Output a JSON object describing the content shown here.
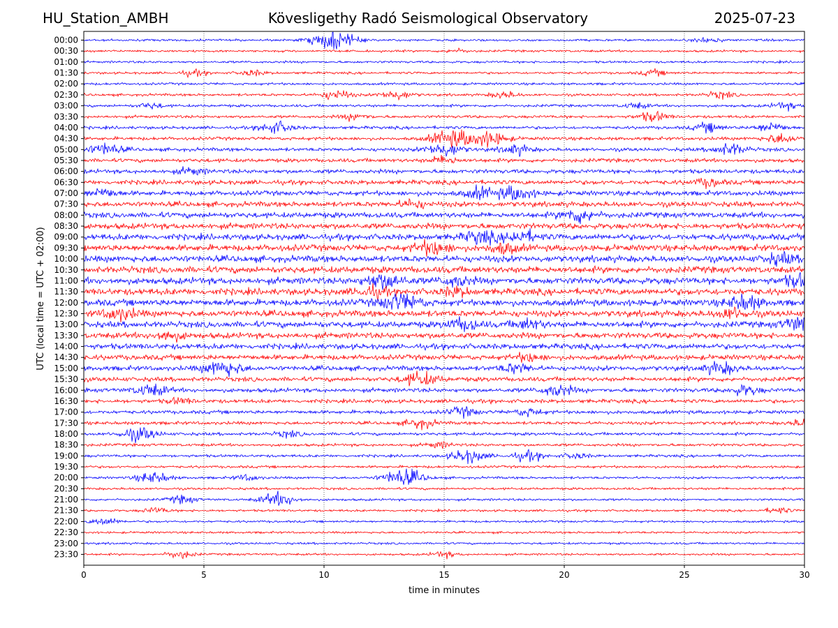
{
  "header": {
    "station": "HU_Station_AMBH",
    "observatory": "Kövesligethy Radó Seismological Observatory",
    "date": "2025-07-23"
  },
  "chart_data": {
    "type": "line",
    "title": "Kövesligethy Radó Seismological Observatory",
    "xlabel": "time in minutes",
    "ylabel": "UTC (local time = UTC + 02:00)",
    "xlim": [
      0,
      30
    ],
    "xticks": [
      0,
      5,
      10,
      15,
      20,
      25,
      30
    ],
    "grid": "vertical dotted at x ticks",
    "colors": {
      "even_rows": "#0000ff",
      "odd_rows": "#ff0000"
    },
    "rows": [
      {
        "label": "00:00",
        "color": "#0000ff",
        "events": [
          {
            "t": 10.4,
            "amp": 1.0
          },
          {
            "t": 26.0,
            "amp": 0.3
          }
        ]
      },
      {
        "label": "00:30",
        "color": "#ff0000",
        "events": [
          {
            "t": 15.5,
            "amp": 0.2
          }
        ]
      },
      {
        "label": "01:00",
        "color": "#0000ff",
        "events": []
      },
      {
        "label": "01:30",
        "color": "#ff0000",
        "events": [
          {
            "t": 4.6,
            "amp": 0.3
          },
          {
            "t": 7.0,
            "amp": 0.3
          },
          {
            "t": 23.7,
            "amp": 0.3
          }
        ]
      },
      {
        "label": "02:00",
        "color": "#0000ff",
        "events": []
      },
      {
        "label": "02:30",
        "color": "#ff0000",
        "events": [
          {
            "t": 10.5,
            "amp": 0.5
          },
          {
            "t": 13.0,
            "amp": 0.5
          },
          {
            "t": 17.5,
            "amp": 0.35
          },
          {
            "t": 26.5,
            "amp": 0.35
          }
        ]
      },
      {
        "label": "03:00",
        "color": "#0000ff",
        "events": [
          {
            "t": 2.8,
            "amp": 0.3
          },
          {
            "t": 23.0,
            "amp": 0.3
          },
          {
            "t": 29.2,
            "amp": 0.35
          }
        ]
      },
      {
        "label": "03:30",
        "color": "#ff0000",
        "events": [
          {
            "t": 11.3,
            "amp": 0.35
          },
          {
            "t": 23.7,
            "amp": 0.5
          }
        ]
      },
      {
        "label": "04:00",
        "color": "#0000ff",
        "events": [
          {
            "t": 8.0,
            "amp": 0.6
          },
          {
            "t": 26.0,
            "amp": 0.45
          },
          {
            "t": 28.6,
            "amp": 0.5
          }
        ]
      },
      {
        "label": "04:30",
        "color": "#ff0000",
        "events": [
          {
            "t": 15.3,
            "amp": 0.9
          },
          {
            "t": 16.8,
            "amp": 0.8
          },
          {
            "t": 29.0,
            "amp": 0.5
          }
        ]
      },
      {
        "label": "05:00",
        "color": "#0000ff",
        "events": [
          {
            "t": 0.9,
            "amp": 0.6
          },
          {
            "t": 15.0,
            "amp": 0.7
          },
          {
            "t": 18.0,
            "amp": 0.5
          },
          {
            "t": 26.9,
            "amp": 0.6
          }
        ]
      },
      {
        "label": "05:30",
        "color": "#ff0000",
        "events": [
          {
            "t": 15.0,
            "amp": 0.4
          }
        ]
      },
      {
        "label": "06:00",
        "color": "#0000ff",
        "events": [
          {
            "t": 4.5,
            "amp": 0.35
          }
        ]
      },
      {
        "label": "06:30",
        "color": "#ff0000",
        "events": [
          {
            "t": 26.0,
            "amp": 0.4
          }
        ]
      },
      {
        "label": "07:00",
        "color": "#0000ff",
        "events": [
          {
            "t": 0.8,
            "amp": 0.45
          },
          {
            "t": 16.5,
            "amp": 0.55
          },
          {
            "t": 18.0,
            "amp": 0.7
          }
        ]
      },
      {
        "label": "07:30",
        "color": "#ff0000",
        "events": [
          {
            "t": 13.7,
            "amp": 0.4
          }
        ]
      },
      {
        "label": "08:00",
        "color": "#0000ff",
        "events": [
          {
            "t": 20.6,
            "amp": 0.7
          }
        ]
      },
      {
        "label": "08:30",
        "color": "#ff0000",
        "events": []
      },
      {
        "label": "09:00",
        "color": "#0000ff",
        "events": [
          {
            "t": 16.5,
            "amp": 0.6
          },
          {
            "t": 18.2,
            "amp": 0.6
          }
        ]
      },
      {
        "label": "09:30",
        "color": "#ff0000",
        "events": [
          {
            "t": 14.5,
            "amp": 0.7
          },
          {
            "t": 17.5,
            "amp": 0.5
          }
        ]
      },
      {
        "label": "10:00",
        "color": "#0000ff",
        "events": [
          {
            "t": 29.0,
            "amp": 0.5
          }
        ]
      },
      {
        "label": "10:30",
        "color": "#ff0000",
        "events": []
      },
      {
        "label": "11:00",
        "color": "#0000ff",
        "events": [
          {
            "t": 12.5,
            "amp": 0.8
          },
          {
            "t": 15.5,
            "amp": 0.5
          },
          {
            "t": 29.8,
            "amp": 0.6
          }
        ]
      },
      {
        "label": "11:30",
        "color": "#ff0000",
        "events": [
          {
            "t": 12.0,
            "amp": 0.5
          },
          {
            "t": 15.5,
            "amp": 0.4
          }
        ]
      },
      {
        "label": "12:00",
        "color": "#0000ff",
        "events": [
          {
            "t": 13.2,
            "amp": 0.9
          },
          {
            "t": 27.5,
            "amp": 0.7
          }
        ]
      },
      {
        "label": "12:30",
        "color": "#ff0000",
        "events": [
          {
            "t": 1.5,
            "amp": 0.6
          },
          {
            "t": 27.0,
            "amp": 0.5
          }
        ]
      },
      {
        "label": "13:00",
        "color": "#0000ff",
        "events": [
          {
            "t": 15.8,
            "amp": 0.6
          },
          {
            "t": 18.5,
            "amp": 0.5
          },
          {
            "t": 29.8,
            "amp": 0.7
          }
        ]
      },
      {
        "label": "13:30",
        "color": "#ff0000",
        "events": [
          {
            "t": 3.5,
            "amp": 0.5
          }
        ]
      },
      {
        "label": "14:00",
        "color": "#0000ff",
        "events": []
      },
      {
        "label": "14:30",
        "color": "#ff0000",
        "events": [
          {
            "t": 18.5,
            "amp": 0.4
          }
        ]
      },
      {
        "label": "15:00",
        "color": "#0000ff",
        "events": [
          {
            "t": 5.8,
            "amp": 0.8
          },
          {
            "t": 18.0,
            "amp": 0.5
          },
          {
            "t": 26.5,
            "amp": 0.6
          }
        ]
      },
      {
        "label": "15:30",
        "color": "#ff0000",
        "events": [
          {
            "t": 14.0,
            "amp": 0.7
          }
        ]
      },
      {
        "label": "16:00",
        "color": "#0000ff",
        "events": [
          {
            "t": 2.8,
            "amp": 0.6
          },
          {
            "t": 19.7,
            "amp": 0.6
          },
          {
            "t": 27.5,
            "amp": 0.5
          }
        ]
      },
      {
        "label": "16:30",
        "color": "#ff0000",
        "events": [
          {
            "t": 4.0,
            "amp": 0.3
          }
        ]
      },
      {
        "label": "17:00",
        "color": "#0000ff",
        "events": [
          {
            "t": 15.8,
            "amp": 0.45
          },
          {
            "t": 18.5,
            "amp": 0.4
          }
        ]
      },
      {
        "label": "17:30",
        "color": "#ff0000",
        "events": [
          {
            "t": 14.0,
            "amp": 0.5
          },
          {
            "t": 30.0,
            "amp": 0.4
          }
        ]
      },
      {
        "label": "18:00",
        "color": "#0000ff",
        "events": [
          {
            "t": 2.3,
            "amp": 0.7
          },
          {
            "t": 8.5,
            "amp": 0.3
          }
        ]
      },
      {
        "label": "18:30",
        "color": "#ff0000",
        "events": [
          {
            "t": 14.8,
            "amp": 0.3
          }
        ]
      },
      {
        "label": "19:00",
        "color": "#0000ff",
        "events": [
          {
            "t": 16.0,
            "amp": 0.7
          },
          {
            "t": 18.5,
            "amp": 0.5
          },
          {
            "t": 20.5,
            "amp": 0.3
          }
        ]
      },
      {
        "label": "19:30",
        "color": "#ff0000",
        "events": []
      },
      {
        "label": "20:00",
        "color": "#0000ff",
        "events": [
          {
            "t": 2.9,
            "amp": 0.6
          },
          {
            "t": 6.8,
            "amp": 0.3
          },
          {
            "t": 13.3,
            "amp": 0.9
          }
        ]
      },
      {
        "label": "20:30",
        "color": "#ff0000",
        "events": []
      },
      {
        "label": "21:00",
        "color": "#0000ff",
        "events": [
          {
            "t": 4.1,
            "amp": 0.4
          },
          {
            "t": 8.1,
            "amp": 0.7
          }
        ]
      },
      {
        "label": "21:30",
        "color": "#ff0000",
        "events": [
          {
            "t": 3.0,
            "amp": 0.3
          },
          {
            "t": 28.9,
            "amp": 0.3
          }
        ]
      },
      {
        "label": "22:00",
        "color": "#0000ff",
        "events": [
          {
            "t": 0.9,
            "amp": 0.4
          }
        ]
      },
      {
        "label": "22:30",
        "color": "#ff0000",
        "events": []
      },
      {
        "label": "23:00",
        "color": "#0000ff",
        "events": []
      },
      {
        "label": "23:30",
        "color": "#ff0000",
        "events": [
          {
            "t": 4.0,
            "amp": 0.4
          },
          {
            "t": 15.0,
            "amp": 0.3
          }
        ]
      }
    ]
  }
}
